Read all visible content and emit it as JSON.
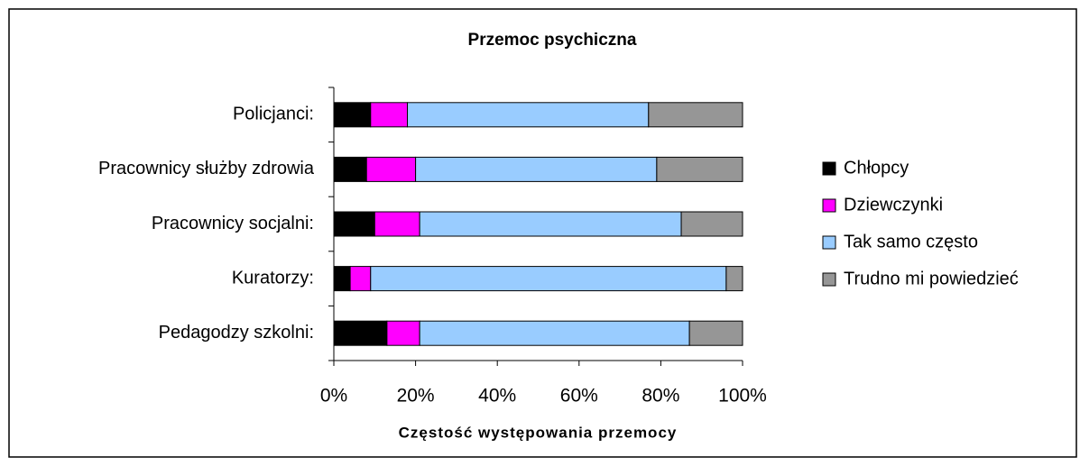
{
  "chart_data": {
    "type": "bar",
    "orientation": "horizontal",
    "stacked": true,
    "title": "Przemoc psychiczna",
    "x_label": "Częstość występowania przemocy",
    "categories": [
      "Policjanci:",
      "Pracownicy służby zdrowia",
      "Pracownicy socjalni:",
      "Kuratorzy:",
      "Pedagodzy szkolni:"
    ],
    "series": [
      {
        "name": "Chłopcy",
        "color": "#000000",
        "values": [
          9,
          8,
          10,
          4,
          13
        ]
      },
      {
        "name": "Dziewczynki",
        "color": "#ff00ff",
        "values": [
          9,
          12,
          11,
          5,
          8
        ]
      },
      {
        "name": "Tak samo często",
        "color": "#99ccff",
        "values": [
          59,
          59,
          64,
          87,
          66
        ]
      },
      {
        "name": "Trudno mi powiedzieć",
        "color": "#969696",
        "values": [
          23,
          21,
          15,
          4,
          13
        ]
      }
    ],
    "xlim": [
      0,
      100
    ],
    "xticks": [
      {
        "value": 0,
        "label": "0%"
      },
      {
        "value": 20,
        "label": "20%"
      },
      {
        "value": 40,
        "label": "40%"
      },
      {
        "value": 60,
        "label": "60%"
      },
      {
        "value": 80,
        "label": "80%"
      },
      {
        "value": 100,
        "label": "100%"
      }
    ],
    "legend": "right"
  }
}
